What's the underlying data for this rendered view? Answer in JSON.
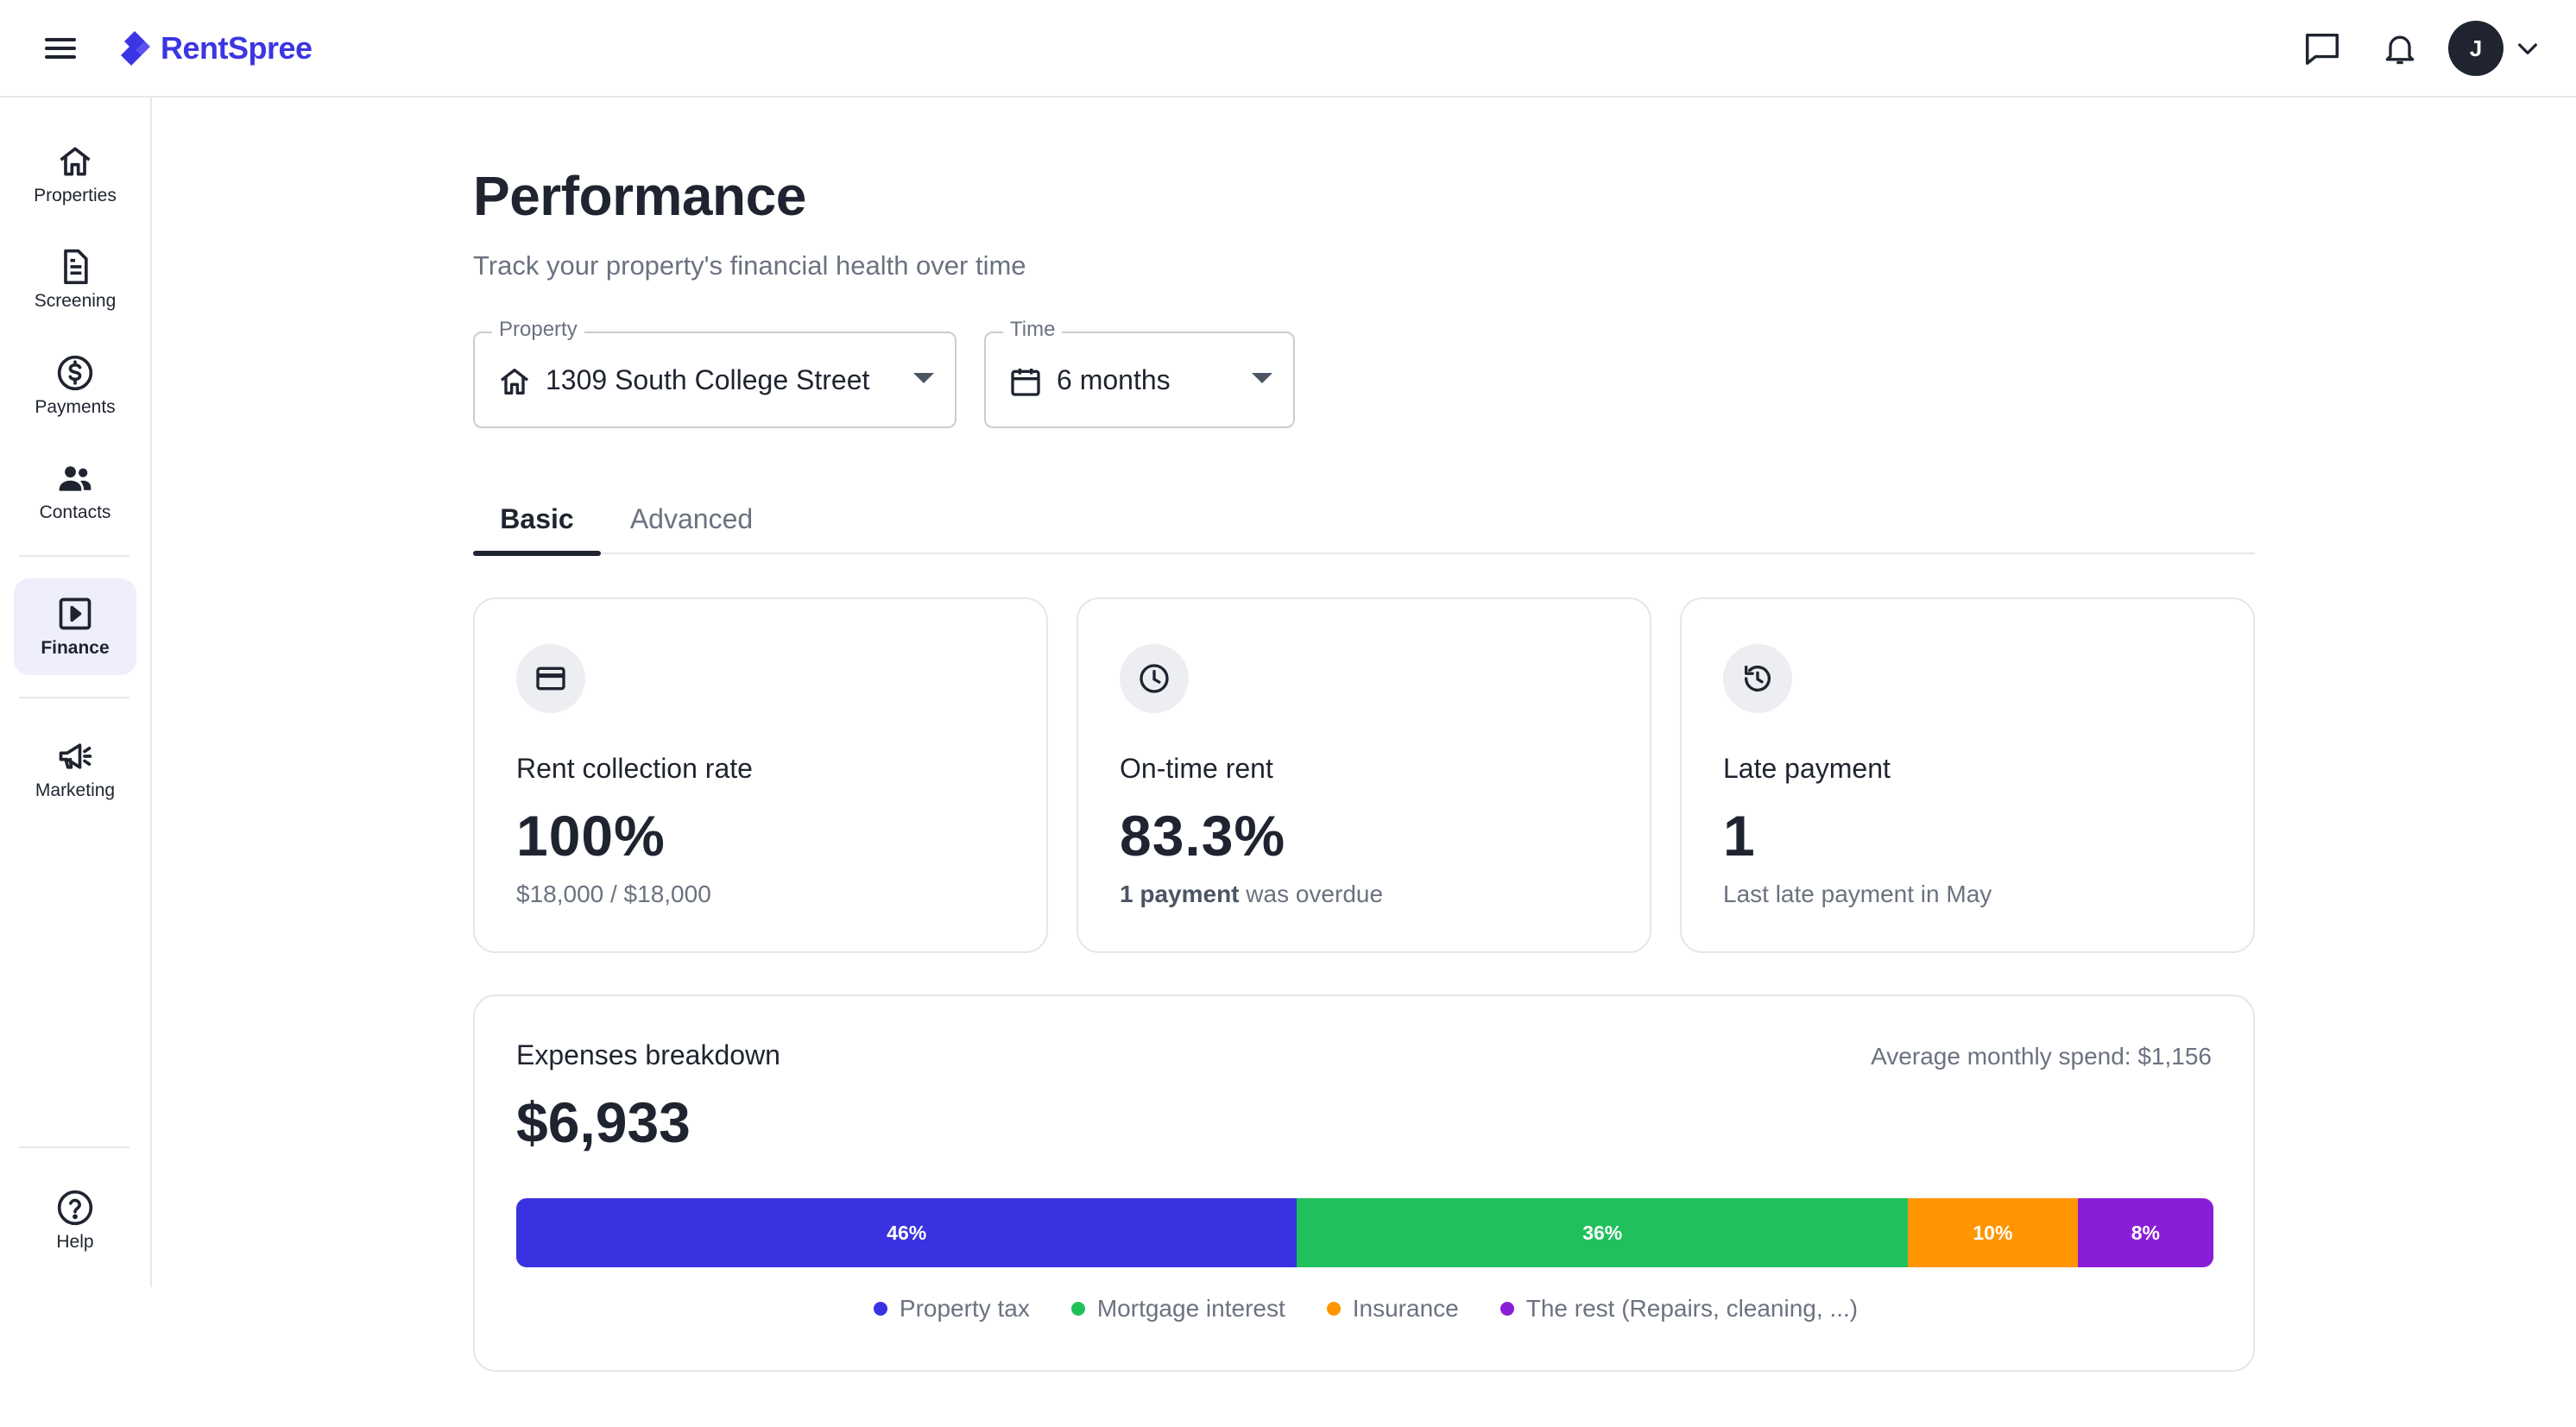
{
  "header": {
    "logo_text": "RentSpree",
    "avatar_initial": "J",
    "brand_color": "#3c35e3",
    "icons": [
      "menu-icon",
      "chat-icon",
      "bell-icon",
      "chevron-down-icon"
    ]
  },
  "sidebar": {
    "items": [
      {
        "label": "Properties",
        "icon": "home-icon"
      },
      {
        "label": "Screening",
        "icon": "document-icon"
      },
      {
        "label": "Payments",
        "icon": "dollar-icon"
      },
      {
        "label": "Contacts",
        "icon": "people-icon"
      },
      {
        "label": "Finance",
        "icon": "play-square-icon",
        "active": true
      },
      {
        "label": "Marketing",
        "icon": "megaphone-icon"
      }
    ],
    "help_label": "Help",
    "active_color": "#efeefc"
  },
  "page": {
    "title": "Performance",
    "subtitle": "Track your property's financial health over time"
  },
  "filters": {
    "property": {
      "legend": "Property",
      "value": "1309 South College Street"
    },
    "time": {
      "legend": "Time",
      "value": "6 months"
    }
  },
  "tabs": [
    {
      "label": "Basic",
      "active": true
    },
    {
      "label": "Advanced",
      "active": false
    }
  ],
  "cards": [
    {
      "title": "Rent collection rate",
      "value": "100%",
      "note": "$18,000 / $18,000",
      "icon": "credit-card-icon"
    },
    {
      "title": "On-time rent",
      "value": "83.3%",
      "note_bold": "1 payment",
      "note": "was overdue",
      "icon": "clock-icon"
    },
    {
      "title": "Late payment",
      "value": "1",
      "note": "Last late payment in May",
      "icon": "history-icon"
    }
  ],
  "expenses": {
    "title": "Expenses breakdown",
    "average": "Average monthly spend: $1,156",
    "total": "$6,933",
    "segments": [
      {
        "label": "46%",
        "percent": 46,
        "name": "Property tax",
        "color": "#3a32e0"
      },
      {
        "label": "36%",
        "percent": 36,
        "name": "Mortgage interest",
        "color": "#20c15c"
      },
      {
        "label": "10%",
        "percent": 10,
        "name": "Insurance",
        "color": "#ff9500"
      },
      {
        "label": "8%",
        "percent": 8,
        "name": "The rest (Repairs, cleaning, ...)",
        "color": "#8a1ed8"
      }
    ]
  }
}
